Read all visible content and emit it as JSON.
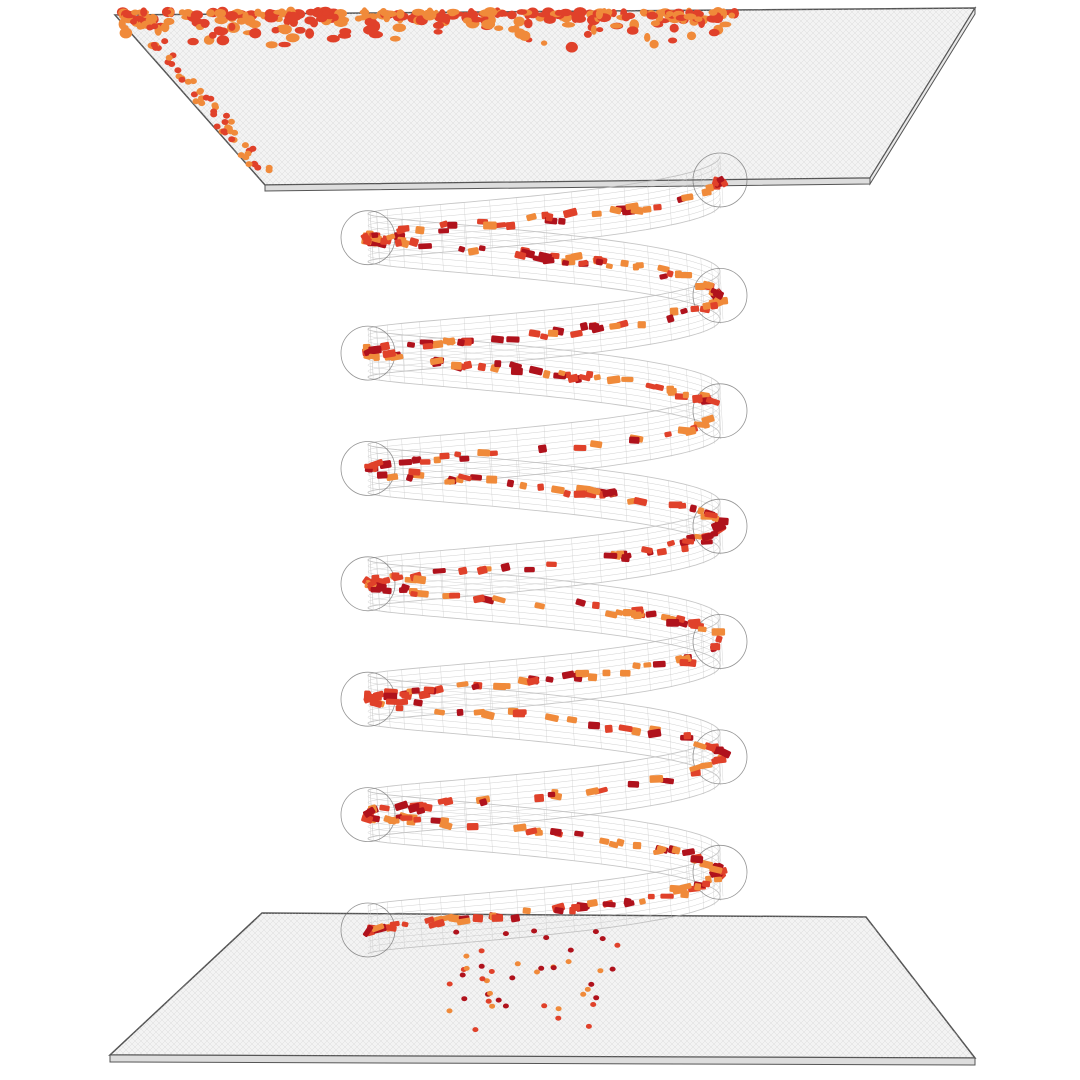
{
  "scene": {
    "kind": "3d-render",
    "background": "#ffffff",
    "colors": {
      "wireframe": "#9a9a9a",
      "plate_edge": "#555555",
      "plate_fill": "#f3f3f3",
      "particle_dark": "#b0121c",
      "particle_mid": "#e0412a",
      "particle_light": "#f08a3a"
    },
    "helix": {
      "turns": 6,
      "tube": "transparent-wireframe"
    },
    "plates": [
      "top",
      "bottom"
    ],
    "particles": "scattered-cylinders"
  }
}
